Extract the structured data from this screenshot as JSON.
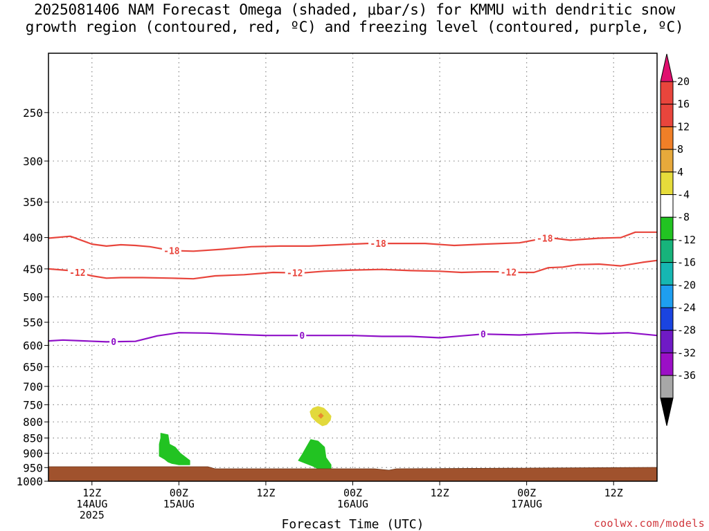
{
  "title": {
    "line1": "2025081406 NAM Forecast Omega (shaded, μbar/s) for KMMU with dendritic snow",
    "line2": "growth region (contoured, red, ºC) and freezing level (contoured, purple, ºC)"
  },
  "credit": "coolwx.com/models",
  "chart_data": {
    "type": "time-height cross section",
    "xlabel": "Forecast Time (UTC)",
    "ylabel": "",
    "x_range_hours": [
      0,
      84
    ],
    "y_scale": "log-pressure (mb), inverted",
    "y_range": [
      1000,
      200
    ],
    "grid": "dotted",
    "y_ticks": [
      250,
      300,
      350,
      400,
      450,
      500,
      550,
      600,
      650,
      700,
      750,
      800,
      850,
      900,
      950,
      1000
    ],
    "x_ticks": [
      {
        "hour": 6,
        "lines": [
          "12Z",
          "14AUG",
          "2025"
        ]
      },
      {
        "hour": 18,
        "lines": [
          "00Z",
          "15AUG"
        ]
      },
      {
        "hour": 30,
        "lines": [
          "12Z"
        ]
      },
      {
        "hour": 42,
        "lines": [
          "00Z",
          "16AUG"
        ]
      },
      {
        "hour": 54,
        "lines": [
          "12Z"
        ]
      },
      {
        "hour": 66,
        "lines": [
          "00Z",
          "17AUG"
        ]
      },
      {
        "hour": 78,
        "lines": [
          "12Z"
        ]
      }
    ],
    "contours": [
      {
        "label": "-18",
        "color": "#e8453c",
        "points": [
          [
            0,
            401
          ],
          [
            3,
            398
          ],
          [
            6,
            410
          ],
          [
            8,
            413
          ],
          [
            10,
            411
          ],
          [
            12,
            412
          ],
          [
            14,
            414
          ],
          [
            17,
            420
          ],
          [
            20,
            421
          ],
          [
            24,
            418
          ],
          [
            28,
            414
          ],
          [
            32,
            413
          ],
          [
            36,
            413
          ],
          [
            40,
            411
          ],
          [
            44,
            409
          ],
          [
            48,
            409
          ],
          [
            52,
            409
          ],
          [
            56,
            412
          ],
          [
            60,
            410
          ],
          [
            65,
            408
          ],
          [
            69,
            400
          ],
          [
            72,
            404
          ],
          [
            76,
            401
          ],
          [
            79,
            400
          ],
          [
            81,
            392
          ],
          [
            84,
            392
          ]
        ],
        "label_hours": [
          17,
          45.5,
          68.5
        ]
      },
      {
        "label": "-12",
        "color": "#e8453c",
        "points": [
          [
            0,
            450
          ],
          [
            3,
            453
          ],
          [
            6,
            462
          ],
          [
            8,
            466
          ],
          [
            10,
            465
          ],
          [
            13,
            465
          ],
          [
            17,
            466
          ],
          [
            20,
            467
          ],
          [
            23,
            462
          ],
          [
            27,
            460
          ],
          [
            31,
            456
          ],
          [
            35,
            457
          ],
          [
            38,
            454
          ],
          [
            42,
            452
          ],
          [
            46,
            451
          ],
          [
            50,
            453
          ],
          [
            54,
            454
          ],
          [
            57,
            456
          ],
          [
            60,
            455
          ],
          [
            63,
            455
          ],
          [
            65,
            456
          ],
          [
            67,
            456
          ],
          [
            69,
            448
          ],
          [
            71,
            447
          ],
          [
            73,
            443
          ],
          [
            76,
            442
          ],
          [
            79,
            445
          ],
          [
            82,
            439
          ],
          [
            84,
            436
          ]
        ],
        "label_hours": [
          4,
          34,
          63.5
        ]
      },
      {
        "label": "0",
        "color": "#8e0fc7",
        "points": [
          [
            0,
            590
          ],
          [
            2,
            588
          ],
          [
            5,
            590
          ],
          [
            8,
            592
          ],
          [
            12,
            591
          ],
          [
            15,
            579
          ],
          [
            18,
            572
          ],
          [
            22,
            573
          ],
          [
            26,
            576
          ],
          [
            30,
            578
          ],
          [
            34,
            578
          ],
          [
            38,
            578
          ],
          [
            42,
            578
          ],
          [
            46,
            580
          ],
          [
            50,
            580
          ],
          [
            54,
            583
          ],
          [
            57,
            579
          ],
          [
            60,
            575
          ],
          [
            65,
            577
          ],
          [
            70,
            573
          ],
          [
            73,
            572
          ],
          [
            76,
            574
          ],
          [
            80,
            572
          ],
          [
            84,
            578
          ]
        ],
        "label_hours": [
          9,
          35,
          60
        ]
      }
    ],
    "shaded_regions": [
      {
        "value_range": [
          -8,
          -4
        ],
        "color": "#22c322",
        "points": [
          [
            15.5,
            835
          ],
          [
            16.5,
            840
          ],
          [
            16.7,
            870
          ],
          [
            17.5,
            880
          ],
          [
            18.2,
            900
          ],
          [
            19.5,
            925
          ],
          [
            19.5,
            940
          ],
          [
            18,
            940
          ],
          [
            17,
            935
          ],
          [
            16.5,
            930
          ],
          [
            16,
            920
          ],
          [
            15.3,
            910
          ],
          [
            15.3,
            870
          ],
          [
            15.5,
            850
          ]
        ]
      },
      {
        "value_range": [
          -8,
          -4
        ],
        "color": "#22c322",
        "points": [
          [
            36.2,
            855
          ],
          [
            37.2,
            860
          ],
          [
            38.1,
            880
          ],
          [
            38.3,
            915
          ],
          [
            39.0,
            940
          ],
          [
            39.0,
            955
          ],
          [
            37.5,
            958
          ],
          [
            36.5,
            945
          ],
          [
            35.5,
            935
          ],
          [
            34.5,
            925
          ],
          [
            35.0,
            905
          ],
          [
            35.6,
            880
          ]
        ]
      },
      {
        "value_range": [
          4,
          8
        ],
        "color": "#e2d93c",
        "points": [
          [
            37.2,
            755
          ],
          [
            38.0,
            760
          ],
          [
            38.5,
            770
          ],
          [
            39.0,
            783
          ],
          [
            38.9,
            795
          ],
          [
            38.4,
            808
          ],
          [
            37.8,
            812
          ],
          [
            37.0,
            800
          ],
          [
            36.3,
            785
          ],
          [
            36.1,
            770
          ],
          [
            36.5,
            760
          ]
        ]
      }
    ],
    "max_marker": {
      "hour": 37.6,
      "p": 782,
      "color": "#e88a2e"
    },
    "terrain_color": "#a0522d",
    "colorbar": {
      "labels": [
        "20",
        "16",
        "12",
        "8",
        "4",
        "-4",
        "-8",
        "-12",
        "-16",
        "-20",
        "-24",
        "-28",
        "-32",
        "-36"
      ],
      "colors": [
        "#e8453c",
        "#e8453c",
        "#f07f27",
        "#e7a93b",
        "#e6dc3b",
        "#ffffff",
        "#22c322",
        "#17b37b",
        "#16b7b2",
        "#1e9ef0",
        "#1a44e0",
        "#6f1ac5",
        "#9b0fc6",
        "#a7a7a7"
      ],
      "top_arrow_color": "#e0106f",
      "bottom_arrow_color": "#000000"
    }
  }
}
